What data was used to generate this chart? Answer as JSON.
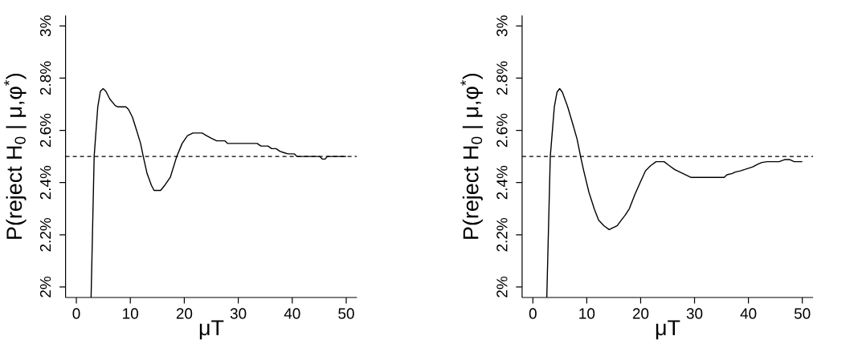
{
  "chart_data": [
    {
      "type": "line",
      "xlabel": "μT",
      "ylabel": "P(reject H$_{0}$ | μ,φ$^{*}$)",
      "x": [
        2.73,
        3.3,
        3.97,
        4.46,
        4.96,
        5.46,
        6.2,
        7.2,
        7.7,
        9.18,
        9.67,
        10.4,
        11.16,
        11.9,
        12.4,
        13.1,
        13.9,
        14.4,
        15.6,
        16.4,
        17.4,
        18.6,
        19.6,
        20.6,
        21.6,
        23.3,
        24.1,
        25.0,
        26.0,
        27.5,
        28.0,
        33.5,
        34.2,
        35.5,
        36.2,
        37.0,
        37.7,
        38.4,
        39.2,
        40.4,
        40.9,
        45.1,
        45.6,
        46.1,
        46.5,
        50
      ],
      "series": [
        {
          "color": "#000000",
          "values": [
            1.96,
            2.5,
            2.69,
            2.75,
            2.76,
            2.75,
            2.72,
            2.695,
            2.69,
            2.69,
            2.68,
            2.65,
            2.6,
            2.55,
            2.5,
            2.435,
            2.39,
            2.37,
            2.37,
            2.39,
            2.42,
            2.5,
            2.55,
            2.58,
            2.59,
            2.59,
            2.58,
            2.57,
            2.56,
            2.56,
            2.55,
            2.55,
            2.54,
            2.54,
            2.53,
            2.53,
            2.52,
            2.515,
            2.51,
            2.51,
            2.5,
            2.5,
            2.49,
            2.49,
            2.5,
            2.5
          ]
        }
      ],
      "xlim": [
        -2,
        52
      ],
      "ylim": [
        1.96,
        3.04
      ],
      "xticks": [
        0,
        10,
        20,
        30,
        40,
        50
      ],
      "yticks": [
        {
          "value": 2,
          "label": "2%"
        },
        {
          "value": 2.2,
          "label": "2.2%"
        },
        {
          "value": 2.4,
          "label": "2.4%"
        },
        {
          "value": 2.6,
          "label": "2.6%"
        },
        {
          "value": 2.8,
          "label": "2.8%"
        },
        {
          "value": 3,
          "label": "3%"
        }
      ],
      "ref_lines": [
        {
          "axis": "y",
          "value": 2.5,
          "line_style": "dashed",
          "color": "#000000"
        }
      ]
    },
    {
      "type": "line",
      "xlabel": "μT",
      "ylabel": "P(reject H$_{0}$ | μ,φ$^{*}$)",
      "x": [
        2.58,
        3.23,
        3.98,
        4.47,
        4.97,
        5.47,
        6.46,
        7.46,
        8.2,
        8.85,
        9.44,
        10.4,
        11.43,
        12.2,
        13.17,
        14.17,
        14.66,
        15.16,
        15.66,
        16.4,
        17.15,
        17.9,
        18.9,
        19.9,
        20.9,
        21.87,
        22.86,
        24.35,
        25.3,
        26.3,
        27.3,
        28.3,
        29.3,
        35.5,
        36.0,
        37.0,
        37.5,
        38.5,
        39.3,
        40.0,
        40.8,
        41.7,
        42.5,
        43.5,
        45.7,
        46.7,
        47.7,
        48.5,
        50
      ],
      "series": [
        {
          "color": "#000000",
          "values": [
            1.96,
            2.5,
            2.69,
            2.746,
            2.76,
            2.746,
            2.69,
            2.62,
            2.567,
            2.5,
            2.445,
            2.363,
            2.297,
            2.256,
            2.235,
            2.22,
            2.225,
            2.23,
            2.235,
            2.256,
            2.276,
            2.3,
            2.353,
            2.4,
            2.445,
            2.465,
            2.48,
            2.48,
            2.465,
            2.45,
            2.44,
            2.43,
            2.42,
            2.42,
            2.43,
            2.435,
            2.44,
            2.445,
            2.45,
            2.455,
            2.46,
            2.47,
            2.477,
            2.48,
            2.48,
            2.488,
            2.488,
            2.48,
            2.48
          ]
        }
      ],
      "xlim": [
        -2,
        52
      ],
      "ylim": [
        1.96,
        3.04
      ],
      "xticks": [
        0,
        10,
        20,
        30,
        40,
        50
      ],
      "yticks": [
        {
          "value": 2,
          "label": "2%"
        },
        {
          "value": 2.2,
          "label": "2.2%"
        },
        {
          "value": 2.4,
          "label": "2.4%"
        },
        {
          "value": 2.6,
          "label": "2.6%"
        },
        {
          "value": 2.8,
          "label": "2.8%"
        },
        {
          "value": 3,
          "label": "3%"
        }
      ],
      "ref_lines": [
        {
          "axis": "y",
          "value": 2.5,
          "line_style": "dashed",
          "color": "#000000"
        }
      ]
    }
  ]
}
